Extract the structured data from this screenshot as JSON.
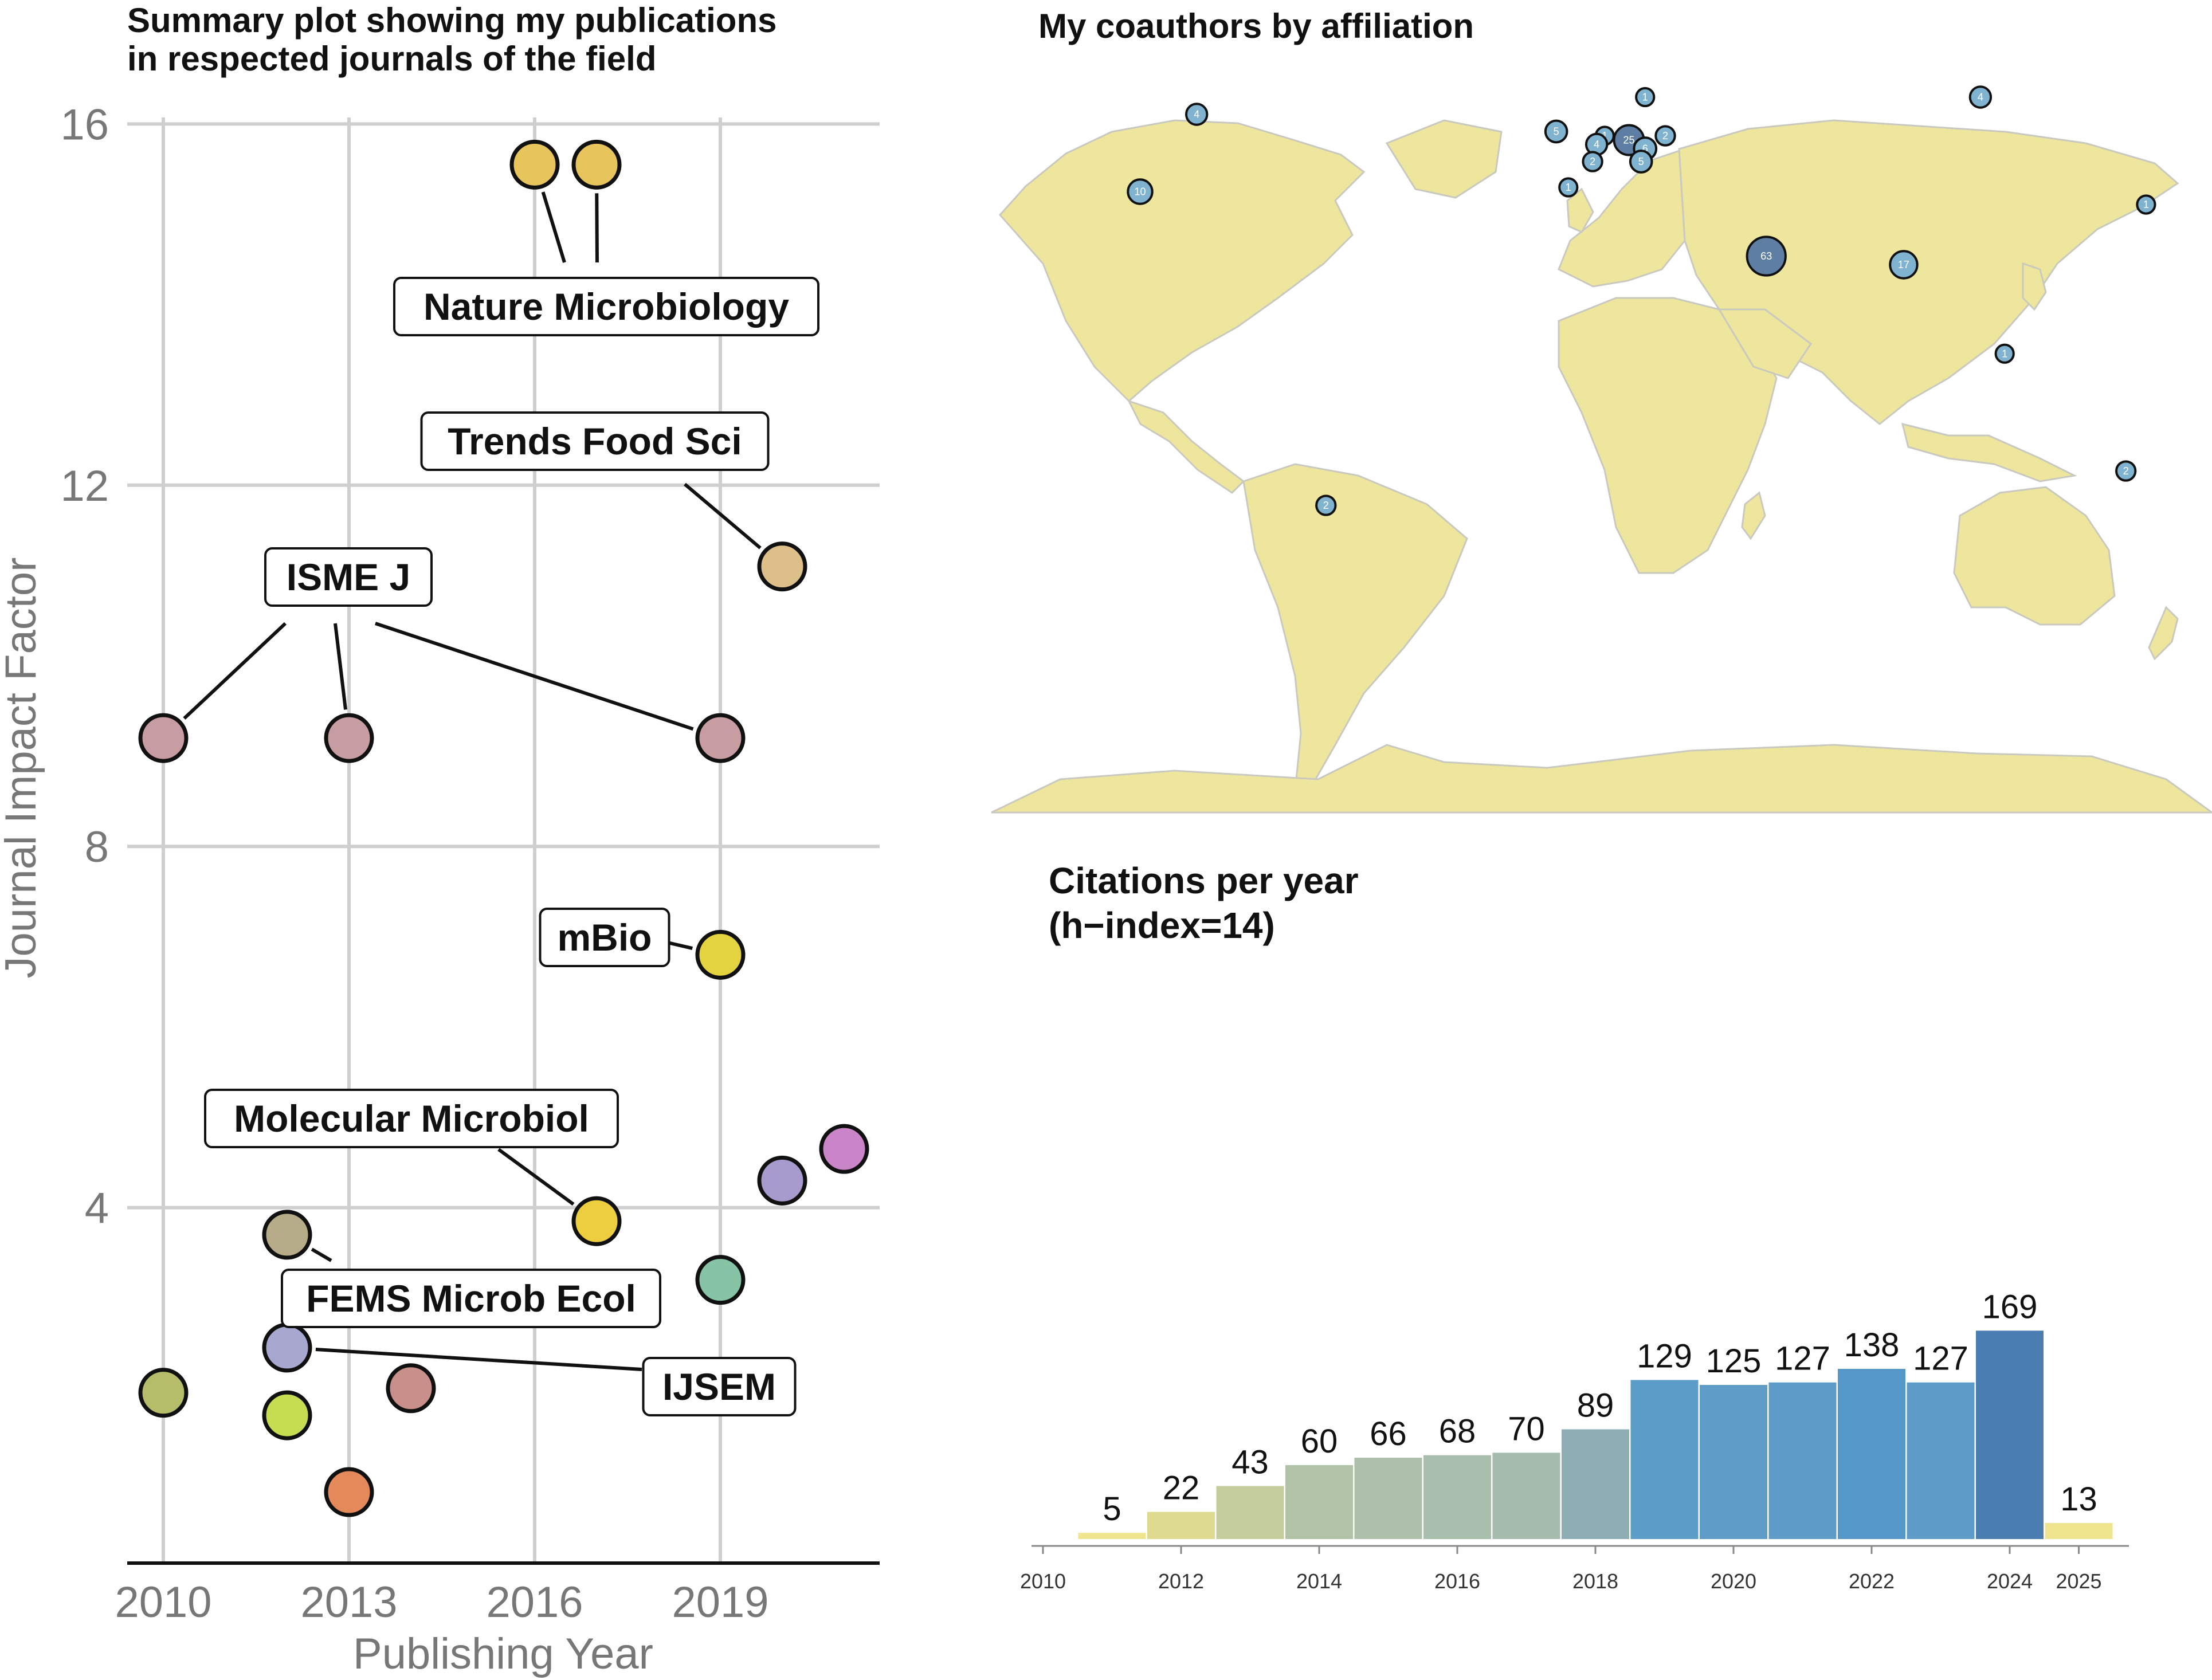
{
  "chart_data": [
    {
      "type": "scatter",
      "title": "Summary plot showing my publications\n in respected journals of the field",
      "xlabel": "Publishing Year",
      "ylabel": "Journal Impact Factor",
      "xlim": [
        2010,
        2021
      ],
      "ylim": [
        0,
        16
      ],
      "xticks": [
        2010,
        2013,
        2016,
        2019
      ],
      "yticks": [
        4,
        8,
        12,
        16
      ],
      "grid": true,
      "points": [
        {
          "x": 2016,
          "y": 15.55,
          "color": "#E8C45C"
        },
        {
          "x": 2017,
          "y": 15.55,
          "color": "#E8C45C"
        },
        {
          "x": 2020,
          "y": 11.1,
          "color": "#DDBF8A"
        },
        {
          "x": 2010,
          "y": 9.2,
          "color": "#C89DA1"
        },
        {
          "x": 2013,
          "y": 9.2,
          "color": "#C89DA1"
        },
        {
          "x": 2019,
          "y": 9.2,
          "color": "#C89DA1"
        },
        {
          "x": 2019,
          "y": 6.8,
          "color": "#E3D33F"
        },
        {
          "x": 2021,
          "y": 4.65,
          "color": "#C985C7"
        },
        {
          "x": 2020,
          "y": 4.3,
          "color": "#A69BCC"
        },
        {
          "x": 2017,
          "y": 3.85,
          "color": "#EDCE3F"
        },
        {
          "x": 2012,
          "y": 3.7,
          "color": "#B6AD88"
        },
        {
          "x": 2019,
          "y": 3.2,
          "color": "#86C4A5"
        },
        {
          "x": 2012,
          "y": 2.45,
          "color": "#A7A7CF"
        },
        {
          "x": 2014,
          "y": 2.0,
          "color": "#C98F8A"
        },
        {
          "x": 2010,
          "y": 1.95,
          "color": "#B6BD6A"
        },
        {
          "x": 2012,
          "y": 1.7,
          "color": "#C6DD52"
        },
        {
          "x": 2013,
          "y": 0.85,
          "color": "#E48A5A"
        }
      ],
      "annotations": [
        {
          "text": "Nature Microbiology",
          "points": [
            0,
            1
          ]
        },
        {
          "text": "Trends Food Sci",
          "points": [
            2
          ]
        },
        {
          "text": "ISME J",
          "points": [
            3,
            4,
            5
          ]
        },
        {
          "text": "mBio",
          "points": [
            6
          ]
        },
        {
          "text": "Molecular Microbiol",
          "points": [
            9
          ]
        },
        {
          "text": "FEMS Microb Ecol",
          "points": [
            10
          ]
        },
        {
          "text": "IJSEM",
          "points": [
            12
          ]
        }
      ]
    },
    {
      "type": "map",
      "title": "My coauthors by affiliation",
      "markers": [
        {
          "location": "Canada",
          "count": 4,
          "lon": -96,
          "lat": 57
        },
        {
          "location": "USA",
          "count": 10,
          "lon": -110,
          "lat": 39
        },
        {
          "location": "Sweden",
          "count": 1,
          "lon": 15,
          "lat": 61
        },
        {
          "location": "Ireland",
          "count": 5,
          "lon": -7,
          "lat": 53
        },
        {
          "location": "Netherlands",
          "count": 1,
          "lon": 5,
          "lat": 52
        },
        {
          "location": "Belgium",
          "count": 4,
          "lon": 3,
          "lat": 50
        },
        {
          "location": "Germany",
          "count": 25,
          "lon": 11,
          "lat": 51
        },
        {
          "location": "Czechia",
          "count": 6,
          "lon": 15,
          "lat": 49
        },
        {
          "location": "Poland",
          "count": 2,
          "lon": 20,
          "lat": 52
        },
        {
          "location": "France",
          "count": 2,
          "lon": 2,
          "lat": 46
        },
        {
          "location": "Austria",
          "count": 5,
          "lon": 14,
          "lat": 46
        },
        {
          "location": "Spain",
          "count": 1,
          "lon": -4,
          "lat": 40
        },
        {
          "location": "Russia",
          "count": 4,
          "lon": 98,
          "lat": 61
        },
        {
          "location": "Japan",
          "count": 1,
          "lon": 139,
          "lat": 36
        },
        {
          "location": "Saudi Arabia",
          "count": 63,
          "lon": 45,
          "lat": 24
        },
        {
          "location": "India",
          "count": 17,
          "lon": 79,
          "lat": 22
        },
        {
          "location": "Singapore",
          "count": 1,
          "lon": 104,
          "lat": 1.3
        },
        {
          "location": "Australia",
          "count": 2,
          "lon": 134,
          "lat": -26
        },
        {
          "location": "Argentina",
          "count": 2,
          "lon": -64,
          "lat": -34
        }
      ]
    },
    {
      "type": "bar",
      "title": "Citations per year",
      "subtitle": "(h−index=14)",
      "categories": [
        2011,
        2012,
        2013,
        2014,
        2015,
        2016,
        2017,
        2018,
        2019,
        2020,
        2021,
        2022,
        2023,
        2024,
        2025
      ],
      "values": [
        5,
        22,
        43,
        60,
        66,
        68,
        70,
        89,
        129,
        125,
        127,
        138,
        127,
        169,
        13
      ],
      "colors": [
        "#EFE58E",
        "#DEDB90",
        "#C4CD9B",
        "#B2C3A7",
        "#ADC0AA",
        "#A9BEAC",
        "#A4BBAD",
        "#8EADB5",
        "#5C9CC9",
        "#5F9DC8",
        "#5D9CC8",
        "#5697CA",
        "#5D9CC8",
        "#4A7DB1",
        "#EFE58E"
      ],
      "xticks": [
        2010,
        2012,
        2014,
        2016,
        2018,
        2020,
        2022,
        2024,
        2025
      ],
      "xlim": [
        2010,
        2025.5
      ],
      "ylim": [
        0,
        175
      ]
    }
  ]
}
